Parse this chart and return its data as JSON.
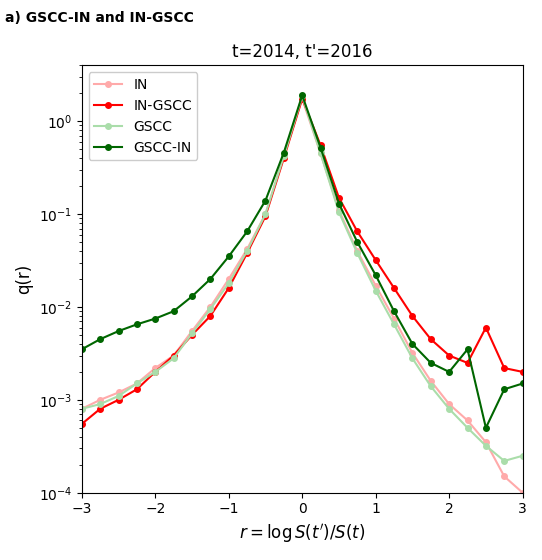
{
  "title": "t=2014, t'=2016",
  "xlabel": "$r = \\log S(t')/S(t)$",
  "ylabel": "q(r)",
  "suptitle": "a) GSCC-IN and IN-GSCC",
  "xlim": [
    -3,
    3
  ],
  "ylim": [
    0.0001,
    4
  ],
  "x": [
    -3.0,
    -2.75,
    -2.5,
    -2.25,
    -2.0,
    -1.75,
    -1.5,
    -1.25,
    -1.0,
    -0.75,
    -0.5,
    -0.25,
    0.0,
    0.25,
    0.5,
    0.75,
    1.0,
    1.25,
    1.5,
    1.75,
    2.0,
    2.25,
    2.5,
    2.75,
    3.0
  ],
  "IN": [
    0.0008,
    0.001,
    0.0012,
    0.0015,
    0.0022,
    0.003,
    0.0055,
    0.01,
    0.02,
    0.042,
    0.1,
    0.42,
    1.75,
    0.45,
    0.11,
    0.04,
    0.017,
    0.0075,
    0.0032,
    0.0016,
    0.0009,
    0.0006,
    0.00035,
    0.00015,
    0.0001
  ],
  "IN_GSCC": [
    0.00055,
    0.0008,
    0.001,
    0.0013,
    0.002,
    0.003,
    0.005,
    0.008,
    0.016,
    0.038,
    0.095,
    0.4,
    1.75,
    0.55,
    0.15,
    0.065,
    0.032,
    0.016,
    0.008,
    0.0045,
    0.003,
    0.0025,
    0.006,
    0.0022,
    0.002
  ],
  "GSCC": [
    0.0008,
    0.0009,
    0.0011,
    0.0015,
    0.002,
    0.0028,
    0.0052,
    0.0095,
    0.018,
    0.04,
    0.1,
    0.42,
    1.85,
    0.45,
    0.105,
    0.038,
    0.015,
    0.0065,
    0.0028,
    0.0014,
    0.0008,
    0.0005,
    0.00032,
    0.00022,
    0.00025
  ],
  "GSCC_IN": [
    0.0035,
    0.0045,
    0.0055,
    0.0065,
    0.0075,
    0.009,
    0.013,
    0.02,
    0.035,
    0.065,
    0.14,
    0.46,
    1.9,
    0.52,
    0.13,
    0.05,
    0.022,
    0.009,
    0.004,
    0.0025,
    0.002,
    0.0035,
    0.0005,
    0.0013,
    0.0015
  ],
  "color_IN": "#ffaaaa",
  "color_IN_GSCC": "#ff0000",
  "color_GSCC": "#aaddaa",
  "color_GSCC_IN": "#006600",
  "markersize": 4,
  "linewidth": 1.5
}
